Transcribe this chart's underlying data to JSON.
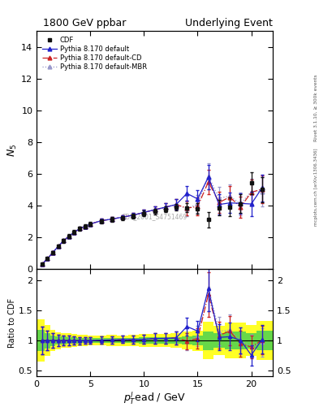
{
  "title_left": "1800 GeV ppbar",
  "title_right": "Underlying Event",
  "ylabel_main": "$N_5$",
  "ylabel_ratio": "Ratio to CDF",
  "xlabel": "$p_T^l$ead / GeV",
  "watermark": "CDF_2001_S4751469",
  "right_label_top": "Rivet 3.1.10, ≥ 300k events",
  "right_label_bot": "mcplots.cern.ch [arXiv:1306.3436]",
  "cdf_x": [
    0.5,
    1.0,
    1.5,
    2.0,
    2.5,
    3.0,
    3.5,
    4.0,
    4.5,
    5.0,
    6.0,
    7.0,
    8.0,
    9.0,
    10.0,
    11.0,
    12.0,
    13.0,
    14.0,
    15.0,
    16.0,
    17.0,
    18.0,
    19.0,
    20.0,
    21.0
  ],
  "cdf_y": [
    0.28,
    0.62,
    1.02,
    1.4,
    1.75,
    2.05,
    2.3,
    2.52,
    2.67,
    2.82,
    3.0,
    3.1,
    3.2,
    3.32,
    3.48,
    3.6,
    3.75,
    3.88,
    3.85,
    3.8,
    3.1,
    3.85,
    3.9,
    4.1,
    5.4,
    5.0
  ],
  "cdf_yerr": [
    0.05,
    0.08,
    0.09,
    0.1,
    0.11,
    0.12,
    0.12,
    0.12,
    0.12,
    0.12,
    0.13,
    0.14,
    0.14,
    0.15,
    0.18,
    0.2,
    0.2,
    0.23,
    0.28,
    0.32,
    0.48,
    0.48,
    0.58,
    0.6,
    0.7,
    0.8
  ],
  "py_x": [
    0.5,
    1.0,
    1.5,
    2.0,
    2.5,
    3.0,
    3.5,
    4.0,
    4.5,
    5.0,
    6.0,
    7.0,
    8.0,
    9.0,
    10.0,
    11.0,
    12.0,
    13.0,
    14.0,
    15.0,
    16.0,
    17.0,
    18.0,
    19.0,
    20.0,
    21.0
  ],
  "py_y": [
    0.28,
    0.62,
    1.02,
    1.4,
    1.75,
    2.05,
    2.3,
    2.52,
    2.67,
    2.82,
    3.02,
    3.13,
    3.25,
    3.38,
    3.55,
    3.72,
    3.88,
    4.05,
    4.75,
    4.4,
    5.78,
    4.05,
    4.15,
    4.12,
    4.08,
    5.1
  ],
  "py_yerr": [
    0.04,
    0.06,
    0.08,
    0.09,
    0.1,
    0.1,
    0.1,
    0.1,
    0.1,
    0.1,
    0.12,
    0.12,
    0.13,
    0.15,
    0.18,
    0.22,
    0.28,
    0.35,
    0.45,
    0.55,
    0.75,
    0.65,
    0.65,
    0.65,
    0.75,
    0.85
  ],
  "cd_x": [
    0.5,
    1.0,
    1.5,
    2.0,
    2.5,
    3.0,
    3.5,
    4.0,
    4.5,
    5.0,
    6.0,
    7.0,
    8.0,
    9.0,
    10.0,
    11.0,
    12.0,
    13.0,
    14.0,
    15.0,
    16.0,
    17.0,
    18.0,
    19.0,
    20.0,
    21.0
  ],
  "cd_y": [
    0.28,
    0.62,
    1.02,
    1.4,
    1.75,
    2.05,
    2.3,
    2.52,
    2.67,
    2.82,
    3.02,
    3.13,
    3.25,
    3.38,
    3.55,
    3.72,
    3.88,
    4.05,
    3.82,
    3.92,
    5.48,
    4.18,
    4.52,
    3.88,
    4.82,
    5.02
  ],
  "cd_yerr": [
    0.04,
    0.06,
    0.08,
    0.09,
    0.1,
    0.1,
    0.1,
    0.1,
    0.1,
    0.1,
    0.12,
    0.12,
    0.13,
    0.15,
    0.18,
    0.22,
    0.28,
    0.35,
    0.45,
    0.55,
    0.78,
    0.68,
    0.68,
    0.68,
    0.78,
    0.88
  ],
  "mbr_x": [
    0.5,
    1.0,
    1.5,
    2.0,
    2.5,
    3.0,
    3.5,
    4.0,
    4.5,
    5.0,
    6.0,
    7.0,
    8.0,
    9.0,
    10.0,
    11.0,
    12.0,
    13.0,
    14.0,
    15.0,
    16.0,
    17.0,
    18.0,
    19.0,
    20.0,
    21.0
  ],
  "mbr_y": [
    0.28,
    0.62,
    1.02,
    1.4,
    1.75,
    2.05,
    2.3,
    2.52,
    2.67,
    2.82,
    3.02,
    3.13,
    3.25,
    3.38,
    3.55,
    3.72,
    3.88,
    4.05,
    3.78,
    4.08,
    5.85,
    4.45,
    4.58,
    4.08,
    4.88,
    4.85
  ],
  "mbr_yerr": [
    0.04,
    0.06,
    0.08,
    0.09,
    0.1,
    0.1,
    0.1,
    0.1,
    0.1,
    0.1,
    0.12,
    0.12,
    0.13,
    0.15,
    0.18,
    0.22,
    0.28,
    0.35,
    0.45,
    0.55,
    0.82,
    0.72,
    0.72,
    0.72,
    0.82,
    0.92
  ],
  "ylim_main": [
    0,
    15
  ],
  "ylim_ratio": [
    0.4,
    2.2
  ],
  "xlim": [
    0,
    22
  ],
  "yticks_main": [
    0,
    2,
    4,
    6,
    8,
    10,
    12,
    14
  ],
  "yticks_ratio": [
    0.5,
    1.0,
    1.5,
    2.0
  ],
  "color_cdf": "#111111",
  "color_default": "#2222cc",
  "color_cd": "#cc2222",
  "color_mbr": "#9999cc",
  "band_green_lo": 0.93,
  "band_green_hi": 1.07,
  "band_yellow_lo": 0.85,
  "band_yellow_hi": 1.15,
  "cdf_band_xlo": [
    0.0,
    0.75,
    1.25,
    1.75,
    2.25,
    2.75,
    3.25,
    3.75,
    4.25,
    4.75,
    5.5,
    6.5,
    7.5,
    8.5,
    9.5,
    10.5,
    11.5,
    12.5,
    13.5,
    14.5,
    15.5,
    16.5,
    17.5,
    18.5,
    19.5,
    20.5
  ],
  "cdf_band_xhi": [
    0.75,
    1.25,
    1.75,
    2.25,
    2.75,
    3.25,
    3.75,
    4.25,
    4.75,
    5.5,
    6.5,
    7.5,
    8.5,
    9.5,
    10.5,
    11.5,
    12.5,
    13.5,
    14.5,
    15.5,
    16.5,
    17.5,
    18.5,
    19.5,
    20.5,
    22.0
  ]
}
